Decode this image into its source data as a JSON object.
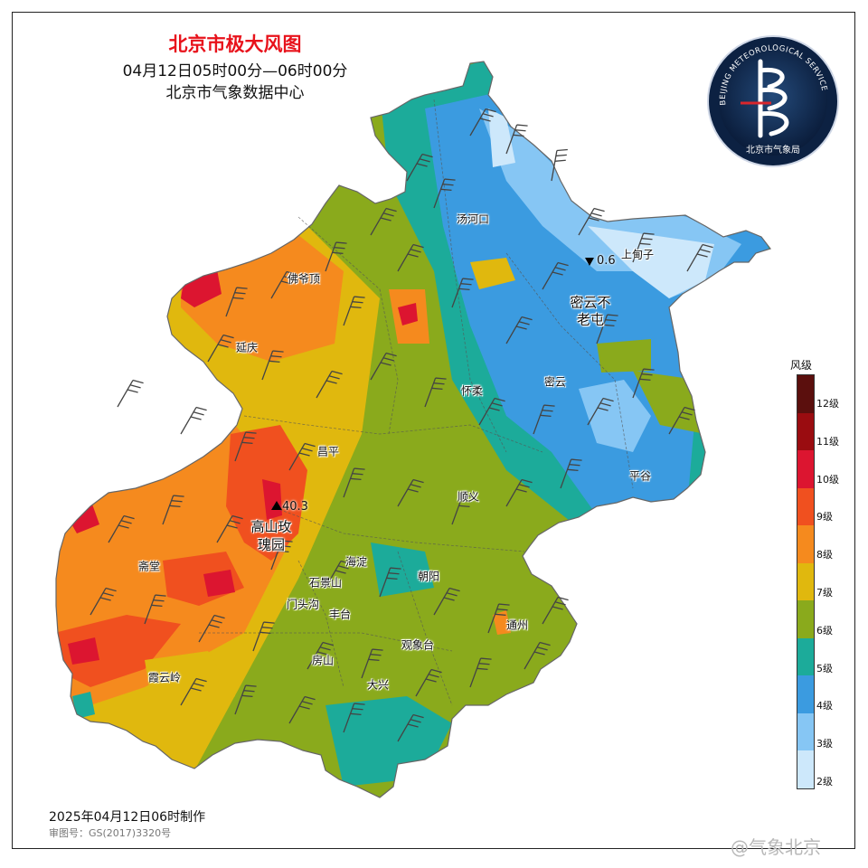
{
  "header": {
    "title": "北京市极大风图",
    "time_range": "04月12日05时00分—06时00分",
    "source": "北京市气象数据中心"
  },
  "logo": {
    "ring_text": "BEIJING METEOROLOGICAL SERVICE",
    "bottom_text": "北京市气象局"
  },
  "districts": [
    {
      "name": "汤河口",
      "big": false
    },
    {
      "name": "上甸子",
      "big": false
    },
    {
      "name": "佛爷顶",
      "big": false
    },
    {
      "name": "密云不",
      "big": true
    },
    {
      "name": "老屯",
      "big": true
    },
    {
      "name": "延庆",
      "big": false
    },
    {
      "name": "怀柔",
      "big": false
    },
    {
      "name": "密云",
      "big": false
    },
    {
      "name": "昌平",
      "big": false
    },
    {
      "name": "顺义",
      "big": false
    },
    {
      "name": "平谷",
      "big": false
    },
    {
      "name": "高山玫",
      "big": true
    },
    {
      "name": "瑰园",
      "big": true
    },
    {
      "name": "海淀",
      "big": false
    },
    {
      "name": "斋堂",
      "big": false
    },
    {
      "name": "石景山",
      "big": false
    },
    {
      "name": "朝阳",
      "big": false
    },
    {
      "name": "门头沟",
      "big": false
    },
    {
      "name": "丰台",
      "big": false
    },
    {
      "name": "通州",
      "big": false
    },
    {
      "name": "观象台",
      "big": false
    },
    {
      "name": "房山",
      "big": false
    },
    {
      "name": "霞云岭",
      "big": false
    },
    {
      "name": "大兴",
      "big": false
    }
  ],
  "extremes": {
    "max_value": "40.3",
    "min_value": "0.6"
  },
  "legend": {
    "title": "风级",
    "levels": [
      {
        "label": "12级",
        "color": "#5b0f0d"
      },
      {
        "label": "11级",
        "color": "#9a0c10"
      },
      {
        "label": "10级",
        "color": "#dc1530"
      },
      {
        "label": "9级",
        "color": "#f0501f"
      },
      {
        "label": "8级",
        "color": "#f58a1e"
      },
      {
        "label": "7级",
        "color": "#e0b80e"
      },
      {
        "label": "6级",
        "color": "#8aaa1c"
      },
      {
        "label": "5级",
        "color": "#1cab9a"
      },
      {
        "label": "4级",
        "color": "#3b9be0"
      },
      {
        "label": "3级",
        "color": "#86c6f4"
      },
      {
        "label": "2级",
        "color": "#cde8fb"
      }
    ]
  },
  "footer": {
    "made": "2025年04月12日06时制作",
    "approval": "审图号：GS(2017)3320号",
    "watermark": "@气象北京"
  }
}
